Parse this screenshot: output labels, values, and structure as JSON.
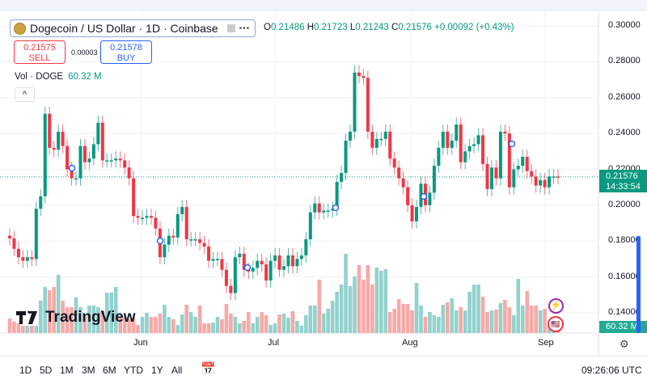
{
  "header": {
    "symbol_title": "Dogecoin / US Dollar · 1D · Coinbase",
    "more": "•••",
    "ohlc": {
      "o_label": "O",
      "o": "0.21486",
      "h_label": "H",
      "h": "0.21723",
      "l_label": "L",
      "l": "0.21243",
      "c_label": "C",
      "c": "0.21576",
      "change": "+0.00092 (+0.43%)"
    }
  },
  "trade": {
    "sell_price": "0.21575",
    "sell_label": "SELL",
    "spread": "0.00003",
    "buy_price": "0.21578",
    "buy_label": "BUY"
  },
  "volume_legend": {
    "label": "Vol · DOGE",
    "value": "60.32 M"
  },
  "collapse_icon": "chevron-up-icon",
  "logo": {
    "text": "TradingView"
  },
  "price_axis": {
    "ticks": [
      "0.30000",
      "0.28000",
      "0.26000",
      "0.24000",
      "0.22000",
      "0.20000",
      "0.18000",
      "0.16000",
      "0.14000"
    ],
    "last_price": "0.21576",
    "countdown": "14:33:54",
    "volume_label": "60.32 M"
  },
  "time_axis": {
    "labels": [
      "Jun",
      "Jul",
      "Aug",
      "Sep"
    ]
  },
  "toolbar": {
    "ranges": [
      "1D",
      "5D",
      "1M",
      "3M",
      "6M",
      "YTD",
      "1Y",
      "All"
    ],
    "clock": "09:26:06 UTC"
  },
  "colors": {
    "up": "#089981",
    "down": "#f23645",
    "vol_up": "#92d2cc",
    "vol_down": "#f7a9a7",
    "accent": "#2962ff"
  },
  "chart_data": {
    "type": "candlestick",
    "first_open": 0.183,
    "ylim": [
      0.13,
      0.305
    ],
    "close": [
      0.1815,
      0.1757,
      0.171,
      0.169,
      0.171,
      0.17,
      0.198,
      0.205,
      0.251,
      0.232,
      0.231,
      0.241,
      0.233,
      0.22,
      0.215,
      0.215,
      0.233,
      0.224,
      0.226,
      0.234,
      0.246,
      0.225,
      0.225,
      0.225,
      0.226,
      0.225,
      0.221,
      0.215,
      0.194,
      0.193,
      0.193,
      0.194,
      0.193,
      0.187,
      0.171,
      0.178,
      0.183,
      0.182,
      0.195,
      0.199,
      0.181,
      0.181,
      0.181,
      0.179,
      0.177,
      0.169,
      0.17,
      0.17,
      0.164,
      0.155,
      0.151,
      0.171,
      0.173,
      0.164,
      0.163,
      0.165,
      0.169,
      0.167,
      0.158,
      0.169,
      0.172,
      0.164,
      0.166,
      0.172,
      0.166,
      0.17,
      0.172,
      0.181,
      0.196,
      0.201,
      0.196,
      0.197,
      0.197,
      0.198,
      0.213,
      0.218,
      0.236,
      0.241,
      0.274,
      0.272,
      0.271,
      0.241,
      0.232,
      0.237,
      0.237,
      0.241,
      0.226,
      0.221,
      0.215,
      0.21,
      0.2,
      0.191,
      0.199,
      0.212,
      0.2,
      0.207,
      0.222,
      0.232,
      0.241,
      0.232,
      0.236,
      0.245,
      0.224,
      0.23,
      0.233,
      0.234,
      0.239,
      0.223,
      0.209,
      0.221,
      0.215,
      0.241,
      0.24,
      0.21,
      0.22,
      0.222,
      0.227,
      0.219,
      0.216,
      0.211,
      0.214,
      0.21,
      0.216,
      0.216,
      0.21576
    ],
    "volume_m": [
      90,
      70,
      60,
      45,
      45,
      45,
      45,
      200,
      285,
      265,
      285,
      360,
      200,
      160,
      160,
      220,
      160,
      100,
      170,
      170,
      160,
      140,
      250,
      250,
      285,
      100,
      100,
      85,
      95,
      50,
      100,
      125,
      100,
      100,
      120,
      175,
      100,
      85,
      50,
      115,
      175,
      130,
      100,
      170,
      60,
      60,
      65,
      100,
      85,
      180,
      120,
      100,
      60,
      75,
      130,
      60,
      100,
      130,
      110,
      50,
      60,
      115,
      120,
      95,
      135,
      75,
      45,
      110,
      170,
      170,
      330,
      120,
      150,
      200,
      255,
      300,
      490,
      290,
      350,
      420,
      330,
      420,
      300,
      405,
      385,
      395,
      130,
      150,
      210,
      180,
      180,
      140,
      310,
      170,
      100,
      130,
      110,
      100,
      175,
      190,
      215,
      140,
      160,
      140,
      255,
      300,
      300,
      225,
      130,
      140,
      145,
      185,
      205,
      160,
      110,
      335,
      170,
      260,
      170,
      170,
      140,
      150,
      45,
      55,
      60.32
    ]
  }
}
